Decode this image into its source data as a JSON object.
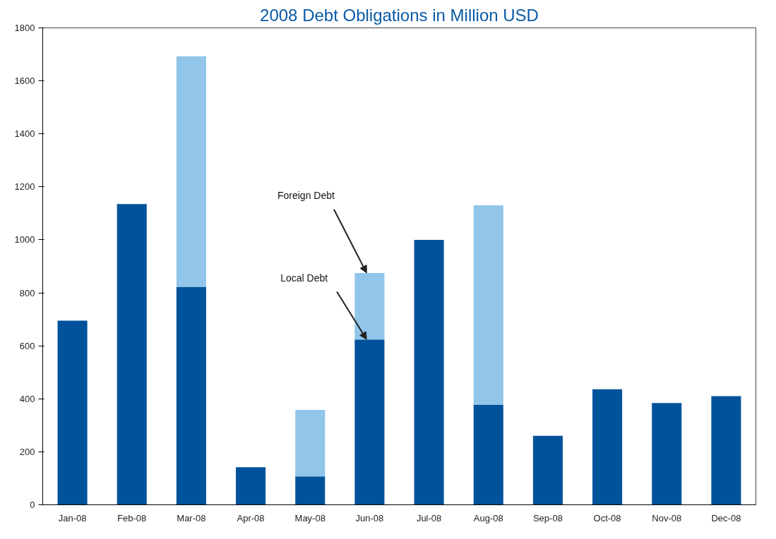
{
  "chart_data": {
    "type": "bar",
    "title": "2008 Debt Obligations in Million USD",
    "stacked": true,
    "categories": [
      "Jan-08",
      "Feb-08",
      "Mar-08",
      "Apr-08",
      "May-08",
      "Jun-08",
      "Jul-08",
      "Aug-08",
      "Sep-08",
      "Oct-08",
      "Nov-08",
      "Dec-08"
    ],
    "series": [
      {
        "color": "#00529b",
        "values": [
          695,
          1135,
          823,
          142,
          107,
          624,
          1000,
          378,
          260,
          436,
          384,
          410
        ]
      },
      {
        "color": "#92c5ea",
        "values": [
          null,
          null,
          870,
          null,
          251,
          251,
          null,
          752,
          null,
          null,
          null,
          null
        ]
      }
    ],
    "ylim": [
      0,
      1800
    ],
    "yticks": [
      0,
      200,
      400,
      600,
      800,
      1000,
      1200,
      1400,
      1600,
      1800
    ],
    "grid": false,
    "annotations": [
      {
        "text": "Foreign Debt",
        "x": "Jun-08",
        "y": 875
      },
      {
        "text": "Local Debt",
        "x": "Jun-08",
        "y": 624
      }
    ]
  }
}
